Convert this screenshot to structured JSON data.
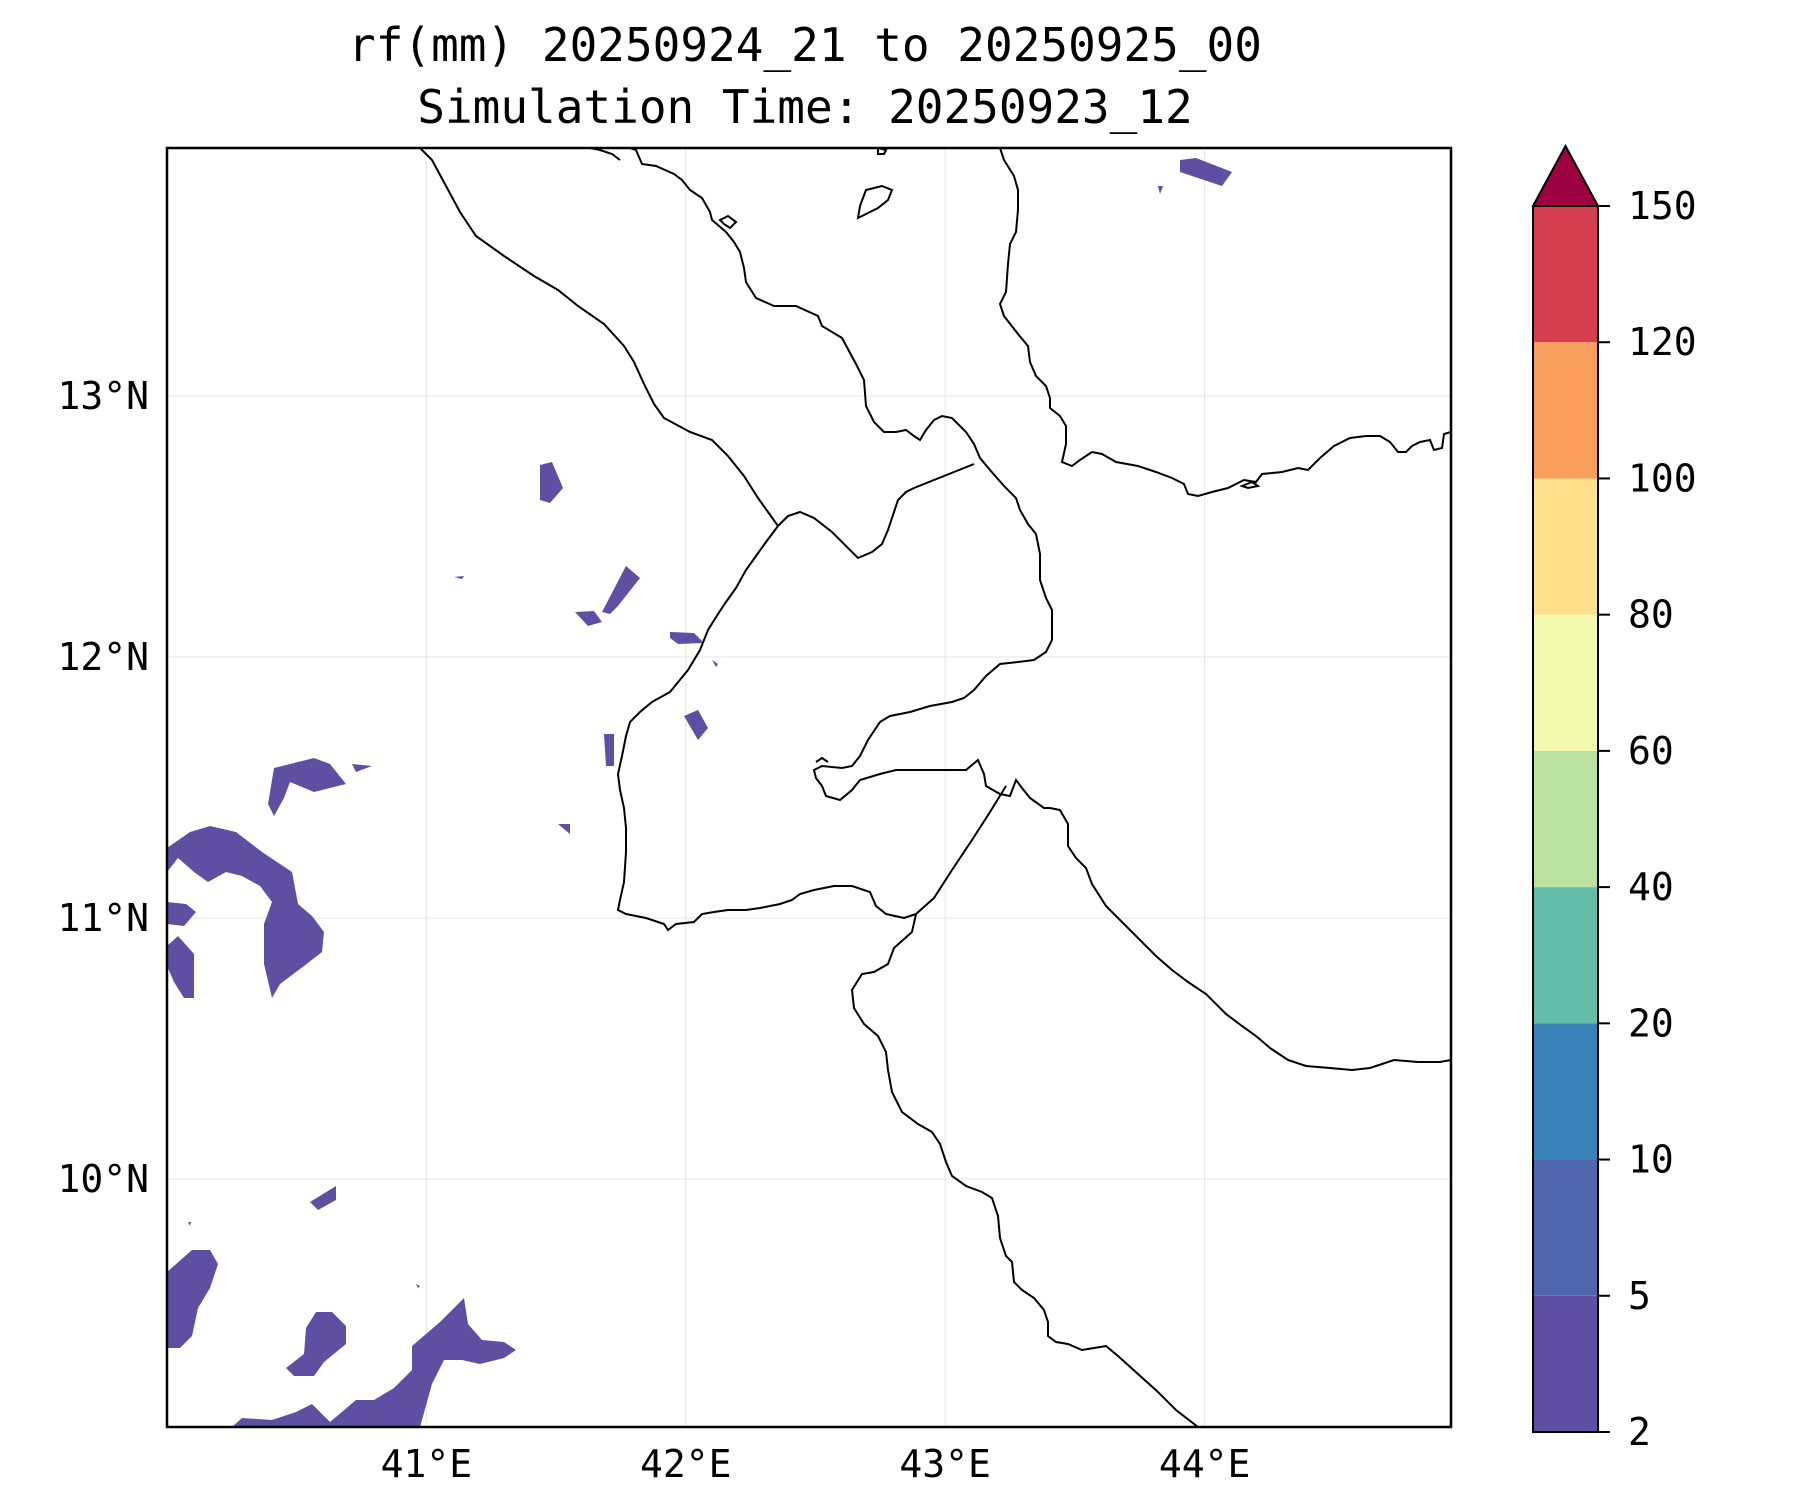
{
  "title": {
    "line1": "rf(mm) 20250924_21 to 20250925_00",
    "line2": "Simulation Time: 20250923_12"
  },
  "map": {
    "lon_range": [
      40.0,
      44.95
    ],
    "lat_range": [
      9.05,
      13.95
    ],
    "lon_ticks": [
      {
        "value": 41,
        "label": "41°E"
      },
      {
        "value": 42,
        "label": "42°E"
      },
      {
        "value": 43,
        "label": "43°E"
      },
      {
        "value": 44,
        "label": "44°E"
      }
    ],
    "lat_ticks": [
      {
        "value": 13,
        "label": "13°N"
      },
      {
        "value": 12,
        "label": "12°N"
      },
      {
        "value": 11,
        "label": "11°N"
      },
      {
        "value": 10,
        "label": "10°N"
      }
    ],
    "gridlines": true,
    "rainfall_fill_color": "#5e4fa2"
  },
  "colorbar": {
    "levels": [
      {
        "value": 2,
        "label": "2"
      },
      {
        "value": 5,
        "label": "5"
      },
      {
        "value": 10,
        "label": "10"
      },
      {
        "value": 20,
        "label": "20"
      },
      {
        "value": 40,
        "label": "40"
      },
      {
        "value": 60,
        "label": "60"
      },
      {
        "value": 80,
        "label": "80"
      },
      {
        "value": 100,
        "label": "100"
      },
      {
        "value": 120,
        "label": "120"
      },
      {
        "value": 150,
        "label": "150"
      }
    ],
    "colors": [
      "#5e4fa2",
      "#4f65ad",
      "#3a80b9",
      "#63bca7",
      "#b9e2a0",
      "#f4faad",
      "#fde08b",
      "#f99e5c",
      "#d53e4f"
    ],
    "extend_color": "#9e0142",
    "extend": "max"
  }
}
